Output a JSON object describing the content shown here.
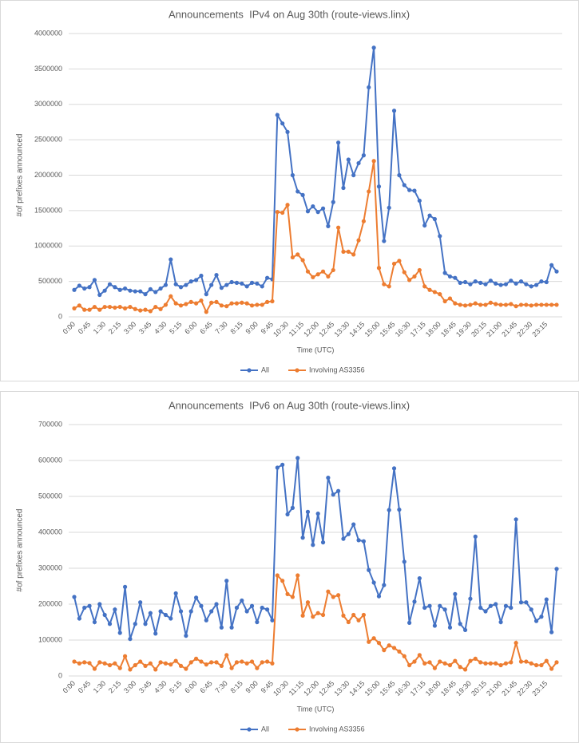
{
  "chart_data": [
    {
      "type": "line",
      "title": "Announcements  IPv4 on Aug 30th (route-views.linx)",
      "xlabel": "Time (UTC)",
      "ylabel": "#of prefixes announced",
      "categories": [
        "0:00",
        null,
        null,
        "0:45",
        null,
        null,
        "1:30",
        null,
        null,
        "2:15",
        null,
        null,
        "3:00",
        null,
        null,
        "3:45",
        null,
        null,
        "4:30",
        null,
        null,
        "5:15",
        null,
        null,
        "6:00",
        null,
        null,
        "6:45",
        null,
        null,
        "7:30",
        null,
        null,
        "8:15",
        null,
        null,
        "9:00",
        null,
        null,
        "9:45",
        null,
        null,
        "10:30",
        null,
        null,
        "11:15",
        null,
        null,
        "12:00",
        null,
        null,
        "12:45",
        null,
        null,
        "13:30",
        null,
        null,
        "14:15",
        null,
        null,
        "15:00",
        null,
        null,
        "15:45",
        null,
        null,
        "16:30",
        null,
        null,
        "17:15",
        null,
        null,
        "18:00",
        null,
        null,
        "18:45",
        null,
        null,
        "19:30",
        null,
        null,
        "20:15",
        null,
        null,
        "21:00",
        null,
        null,
        "21:45",
        null,
        null,
        "22:30",
        null,
        null,
        "23:15",
        null,
        null
      ],
      "series": [
        {
          "name": "All",
          "color": "#4472c4",
          "values": [
            380000,
            440000,
            400000,
            420000,
            520000,
            310000,
            370000,
            460000,
            420000,
            380000,
            400000,
            370000,
            360000,
            360000,
            320000,
            390000,
            350000,
            400000,
            450000,
            810000,
            460000,
            420000,
            450000,
            500000,
            520000,
            580000,
            320000,
            450000,
            590000,
            410000,
            450000,
            490000,
            480000,
            470000,
            430000,
            480000,
            470000,
            430000,
            550000,
            530000,
            2850000,
            2730000,
            2610000,
            2000000,
            1770000,
            1720000,
            1490000,
            1560000,
            1480000,
            1530000,
            1280000,
            1620000,
            2460000,
            1820000,
            2220000,
            2000000,
            2170000,
            2280000,
            3240000,
            3800000,
            1840000,
            1070000,
            1540000,
            2910000,
            2000000,
            1860000,
            1790000,
            1780000,
            1640000,
            1290000,
            1430000,
            1380000,
            1140000,
            620000,
            570000,
            550000,
            480000,
            490000,
            460000,
            500000,
            480000,
            460000,
            510000,
            470000,
            450000,
            460000,
            510000,
            470000,
            500000,
            460000,
            430000,
            450000,
            500000,
            490000,
            730000,
            640000
          ]
        },
        {
          "name": "Involving AS3356",
          "color": "#ed7d31",
          "values": [
            120000,
            160000,
            100000,
            100000,
            140000,
            100000,
            140000,
            140000,
            130000,
            140000,
            120000,
            140000,
            110000,
            90000,
            100000,
            80000,
            140000,
            110000,
            170000,
            290000,
            190000,
            160000,
            180000,
            210000,
            190000,
            230000,
            70000,
            200000,
            210000,
            160000,
            150000,
            190000,
            190000,
            200000,
            190000,
            160000,
            170000,
            170000,
            210000,
            220000,
            1480000,
            1470000,
            1580000,
            840000,
            880000,
            800000,
            640000,
            560000,
            600000,
            640000,
            570000,
            660000,
            1260000,
            920000,
            920000,
            880000,
            1080000,
            1350000,
            1770000,
            2200000,
            690000,
            460000,
            430000,
            750000,
            790000,
            630000,
            520000,
            570000,
            660000,
            430000,
            380000,
            350000,
            320000,
            220000,
            260000,
            190000,
            170000,
            160000,
            170000,
            190000,
            170000,
            170000,
            200000,
            180000,
            170000,
            170000,
            180000,
            150000,
            170000,
            170000,
            160000,
            170000,
            170000,
            170000,
            170000,
            170000
          ]
        }
      ],
      "ylim": [
        0,
        4000000
      ],
      "yticks": [
        0,
        500000,
        1000000,
        1500000,
        2000000,
        2500000,
        3000000,
        3500000,
        4000000
      ],
      "grid": true,
      "legend": "bottom"
    },
    {
      "type": "line",
      "title": "Announcements  IPv6 on Aug 30th (route-views.linx)",
      "xlabel": "Time (UTC)",
      "ylabel": "#of prefixes announced",
      "categories": [
        "0:00",
        null,
        null,
        "0:45",
        null,
        null,
        "1:30",
        null,
        null,
        "2:15",
        null,
        null,
        "3:00",
        null,
        null,
        "3:45",
        null,
        null,
        "4:30",
        null,
        null,
        "5:15",
        null,
        null,
        "6:00",
        null,
        null,
        "6:45",
        null,
        null,
        "7:30",
        null,
        null,
        "8:15",
        null,
        null,
        "9:00",
        null,
        null,
        "9:45",
        null,
        null,
        "10:30",
        null,
        null,
        "11:15",
        null,
        null,
        "12:00",
        null,
        null,
        "12:45",
        null,
        null,
        "13:30",
        null,
        null,
        "14:15",
        null,
        null,
        "15:00",
        null,
        null,
        "15:45",
        null,
        null,
        "16:30",
        null,
        null,
        "17:15",
        null,
        null,
        "18:00",
        null,
        null,
        "18:45",
        null,
        null,
        "19:30",
        null,
        null,
        "20:15",
        null,
        null,
        "21:00",
        null,
        null,
        "21:45",
        null,
        null,
        "22:30",
        null,
        null,
        "23:15",
        null,
        null
      ],
      "series": [
        {
          "name": "All",
          "color": "#4472c4",
          "values": [
            220000,
            160000,
            190000,
            195000,
            150000,
            200000,
            170000,
            145000,
            185000,
            120000,
            248000,
            103000,
            145000,
            205000,
            145000,
            175000,
            118000,
            180000,
            170000,
            160000,
            230000,
            180000,
            112000,
            180000,
            218000,
            195000,
            155000,
            180000,
            200000,
            135000,
            265000,
            135000,
            190000,
            210000,
            180000,
            195000,
            150000,
            190000,
            185000,
            155000,
            580000,
            588000,
            450000,
            468000,
            607000,
            385000,
            457000,
            365000,
            452000,
            372000,
            552000,
            505000,
            515000,
            382000,
            395000,
            422000,
            378000,
            375000,
            295000,
            260000,
            222000,
            253000,
            462000,
            578000,
            463000,
            318000,
            148000,
            207000,
            272000,
            190000,
            195000,
            140000,
            195000,
            185000,
            135000,
            228000,
            145000,
            128000,
            215000,
            388000,
            190000,
            180000,
            195000,
            200000,
            150000,
            195000,
            190000,
            436000,
            205000,
            205000,
            185000,
            153000,
            165000,
            213000,
            122000,
            298000
          ]
        },
        {
          "name": "Involving AS3356",
          "color": "#ed7d31",
          "values": [
            40000,
            35000,
            38000,
            36000,
            20000,
            38000,
            35000,
            30000,
            35000,
            22000,
            55000,
            18000,
            30000,
            40000,
            28000,
            35000,
            18000,
            38000,
            35000,
            32000,
            42000,
            28000,
            20000,
            38000,
            48000,
            40000,
            32000,
            38000,
            38000,
            28000,
            58000,
            22000,
            38000,
            40000,
            35000,
            40000,
            22000,
            38000,
            40000,
            35000,
            280000,
            265000,
            228000,
            220000,
            280000,
            168000,
            205000,
            165000,
            175000,
            170000,
            235000,
            220000,
            225000,
            168000,
            150000,
            170000,
            155000,
            170000,
            95000,
            105000,
            92000,
            72000,
            85000,
            78000,
            68000,
            55000,
            30000,
            40000,
            58000,
            35000,
            38000,
            22000,
            40000,
            35000,
            30000,
            42000,
            25000,
            18000,
            42000,
            48000,
            38000,
            35000,
            35000,
            35000,
            30000,
            35000,
            38000,
            92000,
            40000,
            40000,
            35000,
            30000,
            30000,
            42000,
            20000,
            38000
          ]
        }
      ],
      "ylim": [
        0,
        700000
      ],
      "yticks": [
        0,
        100000,
        200000,
        300000,
        400000,
        500000,
        600000,
        700000
      ],
      "grid": true,
      "legend": "bottom"
    }
  ]
}
